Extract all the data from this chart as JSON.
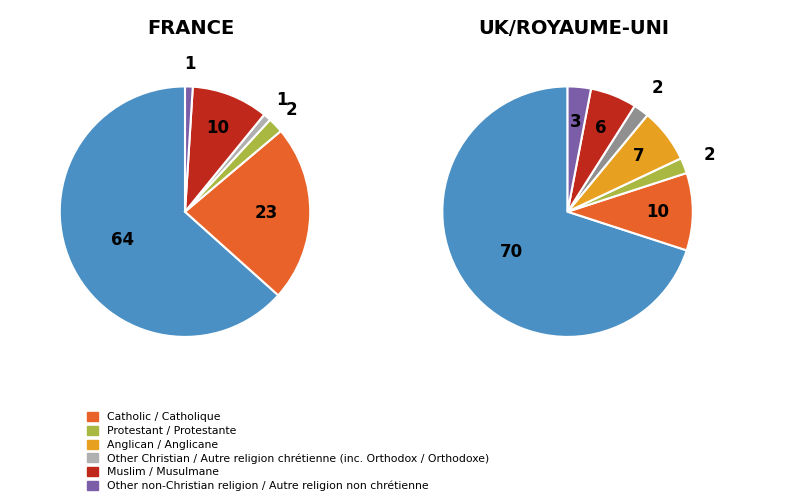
{
  "france": {
    "title": "FRANCE",
    "values": [
      64,
      23,
      2,
      1,
      10,
      1
    ],
    "colors": [
      "#4a90c4",
      "#e8622a",
      "#a8b840",
      "#b0b0b0",
      "#c0281c",
      "#7b5ea7"
    ],
    "labels": [
      "64",
      "23",
      "2",
      "1",
      "10",
      "1"
    ],
    "startangle": 90,
    "label_radii": [
      0.55,
      0.65,
      1.18,
      1.18,
      0.72,
      1.18
    ]
  },
  "uk": {
    "title": "UK/ROYAUME-UNI",
    "values": [
      70,
      10,
      2,
      7,
      2,
      6,
      3
    ],
    "colors": [
      "#4a90c4",
      "#e8622a",
      "#a8b840",
      "#e8a020",
      "#909090",
      "#c0281c",
      "#7b5ea7"
    ],
    "labels": [
      "70",
      "10",
      "2",
      "7",
      "2",
      "6",
      "3"
    ],
    "startangle": 90,
    "label_radii": [
      0.55,
      0.72,
      1.22,
      0.72,
      1.22,
      0.72,
      0.72
    ]
  },
  "legend_entries": [
    {
      "label": "Catholic / Catholique",
      "color": "#e8622a"
    },
    {
      "label": "Protestant / Protestante",
      "color": "#a8b840"
    },
    {
      "label": "Anglican / Anglicane",
      "color": "#e8a020"
    },
    {
      "label": "Other Christian / Autre religion chrétienne (inc. Orthodox / Orthodoxe)",
      "color": "#b0b0b0"
    },
    {
      "label": "Muslim / Musulmane",
      "color": "#c0281c"
    },
    {
      "label": "Other non-Christian religion / Autre religion non chrétienne",
      "color": "#7b5ea7"
    }
  ],
  "background_color": "#ffffff",
  "label_fontsize": 12,
  "title_fontsize": 14
}
